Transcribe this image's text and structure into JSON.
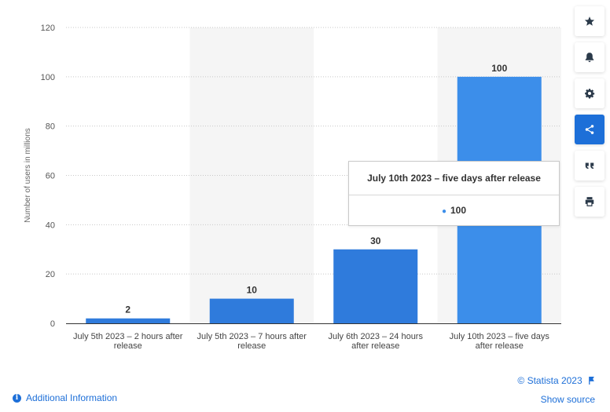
{
  "chart_data": {
    "type": "bar",
    "categories": [
      "July 5th 2023 – 2 hours after release",
      "July 5th 2023 – 7 hours after release",
      "July 6th 2023 – 24 hours after release",
      "July 10th 2023 – five days after release"
    ],
    "category_lines": [
      [
        "July 5th 2023 – 2 hours after",
        "release"
      ],
      [
        "July 5th 2023 – 7 hours after",
        "release"
      ],
      [
        "July 6th 2023 – 24 hours",
        "after release"
      ],
      [
        "July 10th 2023 – five days",
        "after release"
      ]
    ],
    "values": [
      2,
      10,
      30,
      100
    ],
    "data_labels": [
      "2",
      "10",
      "30",
      "100"
    ],
    "ylabel": "Number of users in millions",
    "xlabel": "",
    "ylim": [
      0,
      120
    ],
    "yticks": [
      0,
      20,
      40,
      60,
      80,
      100,
      120
    ],
    "grid": true,
    "bar_color": "#3c8eea",
    "band_color": "#f5f5f5"
  },
  "tooltip": {
    "title": "July 10th 2023 – five days after release",
    "value": "100",
    "marker_color": "#3c8eea"
  },
  "toolbar": {
    "buttons": [
      {
        "icon": "star-icon"
      },
      {
        "icon": "bell-icon"
      },
      {
        "icon": "gear-icon"
      },
      {
        "icon": "share-icon",
        "active": true
      },
      {
        "icon": "quote-icon"
      },
      {
        "icon": "print-icon"
      }
    ]
  },
  "footer": {
    "copyright": "© Statista 2023",
    "show_source": "Show source",
    "additional_info": "Additional Information",
    "link_color": "#1d6fd8"
  }
}
